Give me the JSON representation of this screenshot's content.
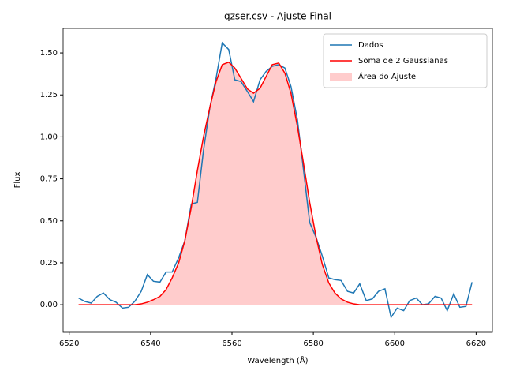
{
  "chart_data": {
    "type": "line",
    "title": "qzser.csv - Ajuste Final",
    "x_label": "Wavelength (Å)",
    "y_label": "Flux",
    "x": [
      6522.3,
      6523.8,
      6525.4,
      6526.9,
      6528.4,
      6530.0,
      6531.5,
      6533.1,
      6534.6,
      6536.1,
      6537.7,
      6539.2,
      6540.7,
      6542.3,
      6543.8,
      6545.3,
      6546.9,
      6548.4,
      6550.0,
      6551.5,
      6553.0,
      6554.6,
      6556.1,
      6557.6,
      6559.2,
      6560.7,
      6562.2,
      6563.8,
      6565.3,
      6566.9,
      6568.4,
      6569.9,
      6571.5,
      6573.0,
      6574.5,
      6576.1,
      6577.6,
      6579.1,
      6580.7,
      6582.2,
      6583.8,
      6585.3,
      6586.8,
      6588.4,
      6589.9,
      6591.4,
      6593.0,
      6594.5,
      6596.0,
      6597.6,
      6599.1,
      6600.6,
      6602.2,
      6603.7,
      6605.3,
      6606.8,
      6608.3,
      6609.9,
      6611.4,
      6612.9,
      6614.5,
      6616.0,
      6617.5,
      6619.0
    ],
    "series": [
      {
        "name": "Dados",
        "kind": "line",
        "color": "#1f77b4",
        "values": [
          0.04,
          0.02,
          0.01,
          0.05,
          0.07,
          0.03,
          0.015,
          -0.02,
          -0.015,
          0.02,
          0.08,
          0.18,
          0.14,
          0.135,
          0.195,
          0.195,
          0.28,
          0.38,
          0.6,
          0.61,
          0.92,
          1.18,
          1.35,
          1.56,
          1.52,
          1.34,
          1.33,
          1.27,
          1.21,
          1.34,
          1.39,
          1.42,
          1.43,
          1.41,
          1.3,
          1.1,
          0.8,
          0.49,
          0.4,
          0.29,
          0.16,
          0.15,
          0.145,
          0.08,
          0.07,
          0.125,
          0.025,
          0.035,
          0.08,
          0.095,
          -0.075,
          -0.02,
          -0.035,
          0.025,
          0.04,
          0.0,
          0.005,
          0.05,
          0.04,
          -0.035,
          0.065,
          -0.015,
          -0.01,
          0.135
        ]
      },
      {
        "name": "Soma de 2 Gaussianas",
        "kind": "line",
        "color": "#ff0000",
        "values": [
          0,
          0,
          0,
          0,
          0,
          0,
          0,
          0,
          0,
          0,
          0.005,
          0.015,
          0.03,
          0.05,
          0.09,
          0.16,
          0.25,
          0.38,
          0.58,
          0.8,
          1.0,
          1.18,
          1.33,
          1.43,
          1.445,
          1.41,
          1.35,
          1.285,
          1.26,
          1.29,
          1.36,
          1.43,
          1.44,
          1.38,
          1.26,
          1.06,
          0.84,
          0.61,
          0.4,
          0.24,
          0.13,
          0.07,
          0.035,
          0.015,
          0.005,
          0,
          0,
          0,
          0,
          0,
          0,
          0,
          0,
          0,
          0,
          0,
          0,
          0,
          0,
          0,
          0,
          0,
          0,
          0
        ]
      },
      {
        "name": "Área do Ajuste",
        "kind": "area",
        "color": "#ffcccc",
        "values": [
          0,
          0,
          0,
          0,
          0,
          0,
          0,
          0,
          0,
          0,
          0.005,
          0.015,
          0.03,
          0.05,
          0.09,
          0.16,
          0.25,
          0.38,
          0.58,
          0.8,
          1.0,
          1.18,
          1.33,
          1.43,
          1.445,
          1.41,
          1.35,
          1.285,
          1.26,
          1.29,
          1.36,
          1.43,
          1.44,
          1.38,
          1.26,
          1.06,
          0.84,
          0.61,
          0.4,
          0.24,
          0.13,
          0.07,
          0.035,
          0.015,
          0.005,
          0,
          0,
          0,
          0,
          0,
          0,
          0,
          0,
          0,
          0,
          0,
          0,
          0,
          0,
          0,
          0,
          0,
          0,
          0
        ]
      }
    ],
    "xlim": [
      6518.5,
      6624
    ],
    "ylim": [
      -0.164,
      1.646
    ],
    "xticks": [
      6520,
      6540,
      6560,
      6580,
      6600,
      6620
    ],
    "yticks": [
      {
        "value": 0,
        "label": "0.00"
      },
      {
        "value": 0.25,
        "label": "0.25"
      },
      {
        "value": 0.5,
        "label": "0.50"
      },
      {
        "value": 0.75,
        "label": "0.75"
      },
      {
        "value": 1,
        "label": "1.00"
      },
      {
        "value": 1.25,
        "label": "1.25"
      },
      {
        "value": 1.5,
        "label": "1.50"
      }
    ],
    "legend": "upper right",
    "grid": false
  }
}
